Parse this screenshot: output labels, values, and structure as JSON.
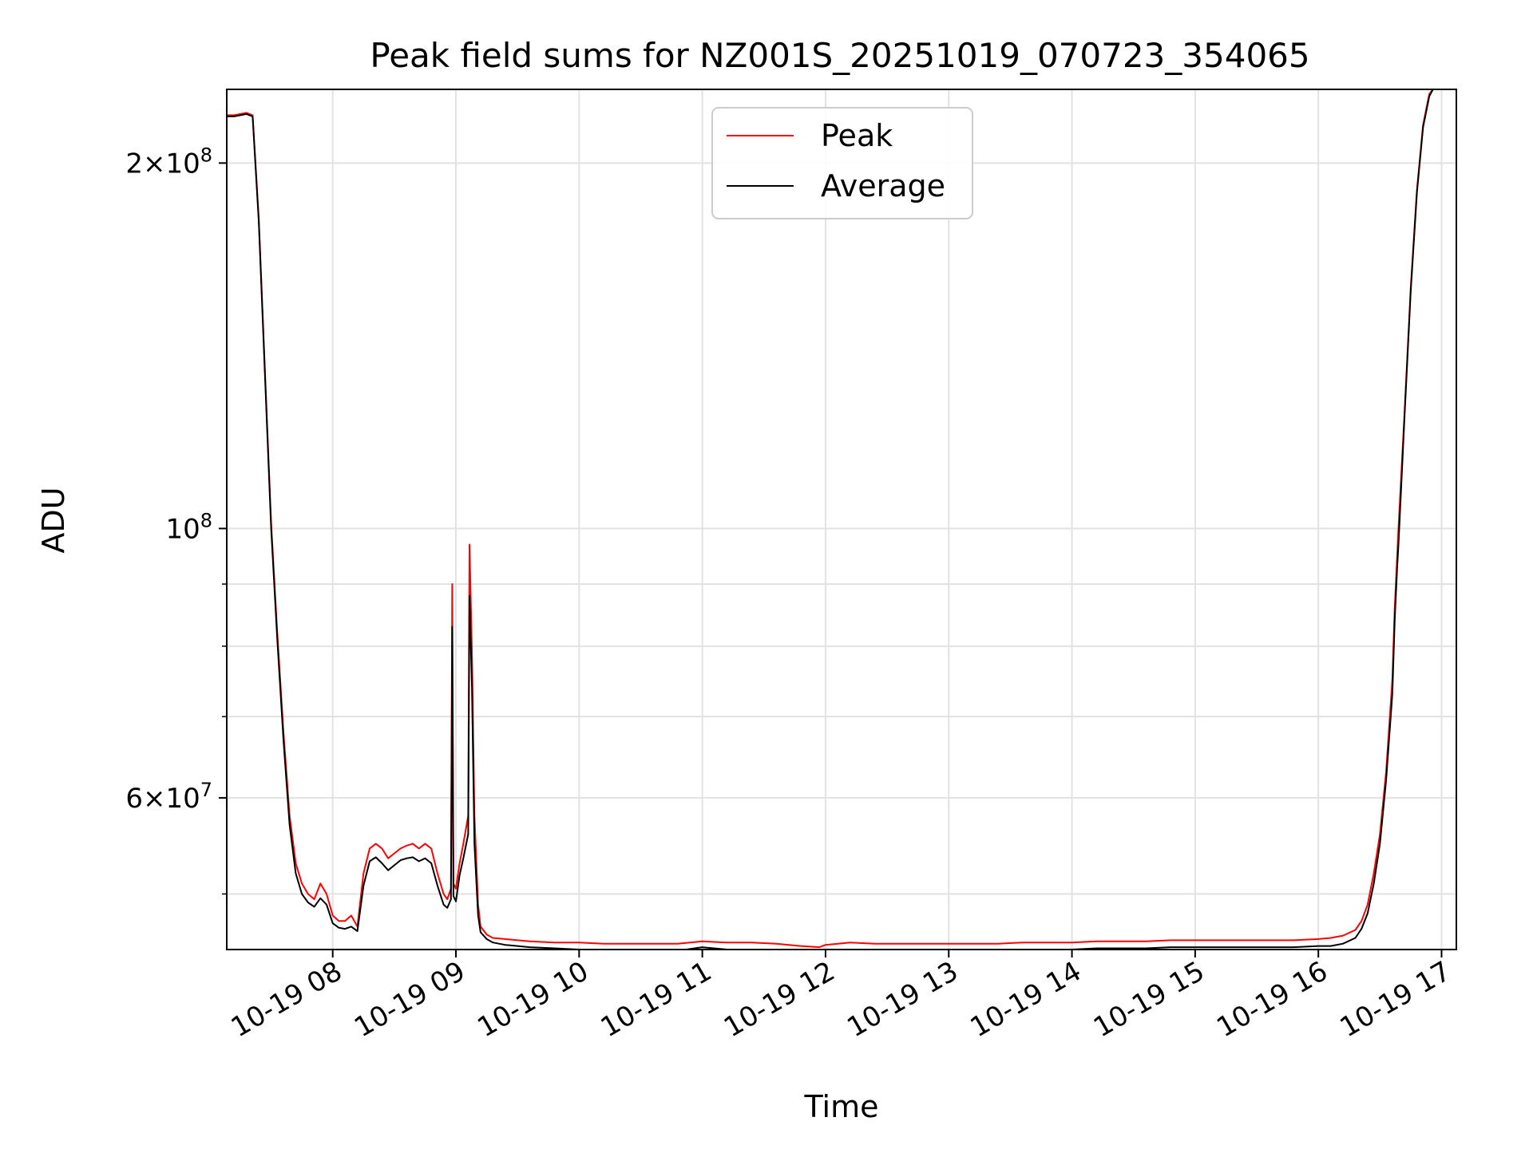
{
  "chart_data": {
    "type": "line",
    "title": "Peak field sums for NZ001S_20251019_070723_354065",
    "xlabel": "Time",
    "ylabel": "ADU",
    "yscale": "log",
    "xlim": [
      7.14,
      17.12
    ],
    "ylim": [
      45000000,
      230000000
    ],
    "grid": true,
    "legend_position": "upper center",
    "x_ticks": [
      {
        "value": 8,
        "label": "10-19 08"
      },
      {
        "value": 9,
        "label": "10-19 09"
      },
      {
        "value": 10,
        "label": "10-19 10"
      },
      {
        "value": 11,
        "label": "10-19 11"
      },
      {
        "value": 12,
        "label": "10-19 12"
      },
      {
        "value": 13,
        "label": "10-19 13"
      },
      {
        "value": 14,
        "label": "10-19 14"
      },
      {
        "value": 15,
        "label": "10-19 15"
      },
      {
        "value": 16,
        "label": "10-19 16"
      },
      {
        "value": 17,
        "label": "10-19 17"
      }
    ],
    "y_ticks_major": [
      {
        "value": 60000000,
        "base": "6",
        "exp": "7"
      },
      {
        "value": 100000000,
        "base": "",
        "exp": "8"
      },
      {
        "value": 200000000,
        "base": "2",
        "exp": "8"
      }
    ],
    "y_ticks_minor": [
      50000000,
      70000000,
      80000000,
      90000000
    ],
    "series": [
      {
        "name": "Peak",
        "color": "#ff0000",
        "x": [
          7.14,
          7.2,
          7.25,
          7.3,
          7.35,
          7.4,
          7.45,
          7.5,
          7.55,
          7.6,
          7.65,
          7.7,
          7.75,
          7.8,
          7.85,
          7.9,
          7.95,
          8.0,
          8.05,
          8.1,
          8.15,
          8.2,
          8.25,
          8.3,
          8.35,
          8.4,
          8.45,
          8.5,
          8.55,
          8.6,
          8.65,
          8.7,
          8.75,
          8.8,
          8.85,
          8.9,
          8.93,
          8.96,
          8.97,
          8.98,
          9.0,
          9.03,
          9.06,
          9.1,
          9.11,
          9.13,
          9.15,
          9.18,
          9.2,
          9.25,
          9.3,
          9.4,
          9.5,
          9.6,
          9.8,
          10.0,
          10.2,
          10.4,
          10.6,
          10.8,
          11.0,
          11.2,
          11.4,
          11.6,
          11.8,
          11.95,
          12.0,
          12.1,
          12.2,
          12.4,
          12.6,
          12.8,
          13.0,
          13.2,
          13.4,
          13.6,
          13.8,
          14.0,
          14.2,
          14.4,
          14.6,
          14.8,
          15.0,
          15.2,
          15.4,
          15.6,
          15.8,
          16.0,
          16.1,
          16.2,
          16.3,
          16.35,
          16.4,
          16.45,
          16.5,
          16.55,
          16.6,
          16.62,
          16.64,
          16.65,
          16.7,
          16.75,
          16.8,
          16.85,
          16.9,
          16.93
        ],
        "values": [
          219000000,
          219000000,
          219500000,
          220000000,
          219000000,
          180000000,
          135000000,
          101000000,
          82000000,
          68000000,
          58000000,
          53000000,
          51000000,
          50000000,
          49500000,
          51000000,
          50000000,
          48000000,
          47500000,
          47500000,
          48000000,
          47000000,
          52000000,
          54500000,
          55000000,
          54500000,
          53500000,
          54000000,
          54500000,
          54800000,
          55000000,
          54500000,
          55000000,
          54500000,
          52000000,
          50000000,
          49500000,
          50500000,
          90000000,
          51000000,
          50500000,
          53000000,
          55000000,
          58000000,
          97000000,
          79000000,
          58000000,
          49000000,
          47000000,
          46300000,
          46000000,
          45900000,
          45800000,
          45700000,
          45600000,
          45600000,
          45500000,
          45500000,
          45500000,
          45500000,
          45700000,
          45600000,
          45600000,
          45500000,
          45300000,
          45200000,
          45400000,
          45500000,
          45600000,
          45500000,
          45500000,
          45500000,
          45500000,
          45500000,
          45500000,
          45600000,
          45600000,
          45600000,
          45700000,
          45700000,
          45700000,
          45800000,
          45800000,
          45800000,
          45800000,
          45800000,
          45800000,
          45900000,
          46000000,
          46200000,
          46700000,
          47500000,
          49000000,
          52000000,
          56000000,
          63000000,
          75000000,
          86000000,
          95000000,
          100000000,
          125000000,
          158000000,
          190000000,
          215000000,
          228000000,
          230000000
        ]
      },
      {
        "name": "Average",
        "color": "#000000",
        "x": [
          7.14,
          7.2,
          7.25,
          7.3,
          7.35,
          7.4,
          7.45,
          7.5,
          7.55,
          7.6,
          7.65,
          7.7,
          7.75,
          7.8,
          7.85,
          7.9,
          7.95,
          8.0,
          8.05,
          8.1,
          8.15,
          8.2,
          8.25,
          8.3,
          8.35,
          8.4,
          8.45,
          8.5,
          8.55,
          8.6,
          8.65,
          8.7,
          8.75,
          8.8,
          8.85,
          8.9,
          8.93,
          8.96,
          8.97,
          8.98,
          9.0,
          9.03,
          9.06,
          9.1,
          9.11,
          9.13,
          9.15,
          9.18,
          9.2,
          9.25,
          9.3,
          9.4,
          9.5,
          9.6,
          9.8,
          10.0,
          10.2,
          10.4,
          10.6,
          10.8,
          11.0,
          11.2,
          11.4,
          11.6,
          11.8,
          11.95,
          12.0,
          12.1,
          12.2,
          12.4,
          12.6,
          12.8,
          13.0,
          13.2,
          13.4,
          13.6,
          13.8,
          14.0,
          14.2,
          14.4,
          14.6,
          14.8,
          15.0,
          15.2,
          15.4,
          15.6,
          15.8,
          16.0,
          16.1,
          16.2,
          16.3,
          16.35,
          16.4,
          16.45,
          16.5,
          16.55,
          16.6,
          16.62,
          16.64,
          16.65,
          16.7,
          16.75,
          16.8,
          16.85,
          16.9,
          16.93
        ],
        "values": [
          218500000,
          218500000,
          219000000,
          219500000,
          218500000,
          179000000,
          134000000,
          100000000,
          81000000,
          67000000,
          57000000,
          52000000,
          50000000,
          49200000,
          48800000,
          49600000,
          49000000,
          47300000,
          46900000,
          46800000,
          47000000,
          46600000,
          50800000,
          53200000,
          53600000,
          53000000,
          52300000,
          52800000,
          53300000,
          53500000,
          53600000,
          53200000,
          53500000,
          53000000,
          50800000,
          49000000,
          48700000,
          49500000,
          83000000,
          49800000,
          49300000,
          51800000,
          53500000,
          56000000,
          88000000,
          74000000,
          55000000,
          48000000,
          46500000,
          45900000,
          45600000,
          45400000,
          45300000,
          45200000,
          45100000,
          45000000,
          45000000,
          45000000,
          44900000,
          44900000,
          45200000,
          45000000,
          45000000,
          44900000,
          44700000,
          44600000,
          44800000,
          44900000,
          45000000,
          44900000,
          44900000,
          44900000,
          44900000,
          44900000,
          44900000,
          45000000,
          45000000,
          45000000,
          45100000,
          45100000,
          45100000,
          45200000,
          45200000,
          45200000,
          45200000,
          45200000,
          45200000,
          45300000,
          45300000,
          45500000,
          46000000,
          46800000,
          48200000,
          51000000,
          55000000,
          62000000,
          73000000,
          84000000,
          93000000,
          97000000,
          124000000,
          157000000,
          189000000,
          214000000,
          227000000,
          230000000
        ]
      }
    ]
  }
}
